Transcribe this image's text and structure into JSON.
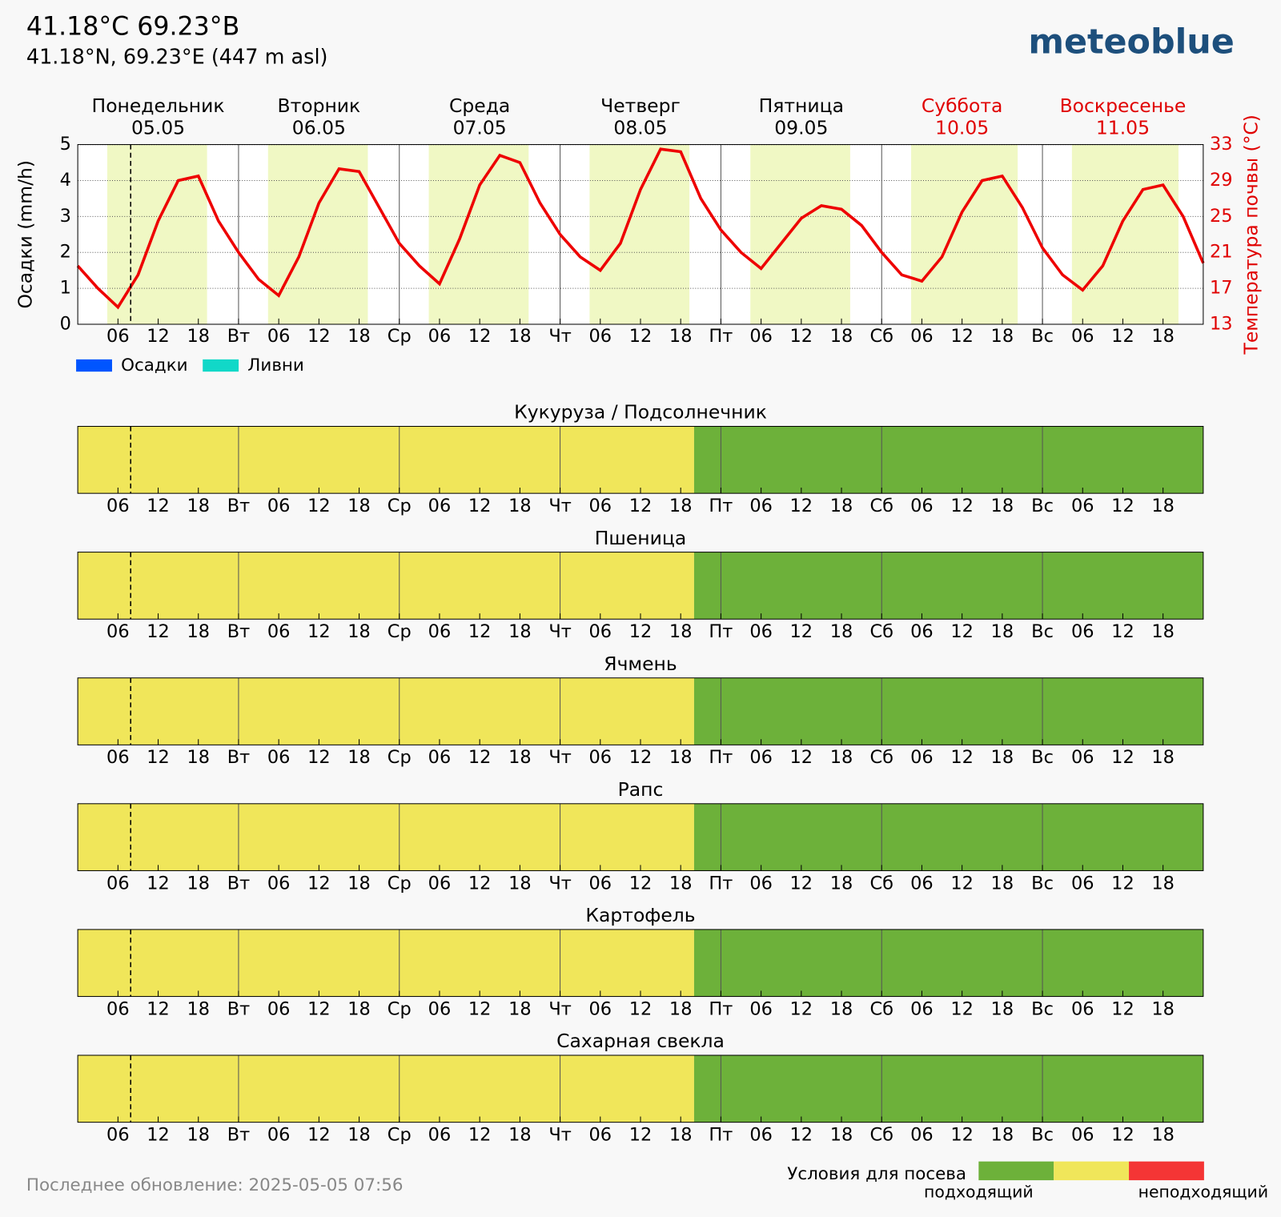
{
  "header": {
    "title": "41.18°C 69.23°B",
    "subtitle": "41.18°N, 69.23°E (447 m asl)",
    "logo": "meteoblue"
  },
  "footer": "Последнее обновление: 2025-05-05 07:56",
  "days": [
    {
      "name": "Понедельник",
      "date": "05.05",
      "color": "#000000"
    },
    {
      "name": "Вторник",
      "date": "06.05",
      "color": "#000000"
    },
    {
      "name": "Среда",
      "date": "07.05",
      "color": "#000000"
    },
    {
      "name": "Четверг",
      "date": "08.05",
      "color": "#000000"
    },
    {
      "name": "Пятница",
      "date": "09.05",
      "color": "#000000"
    },
    {
      "name": "Суббота",
      "date": "10.05",
      "color": "#e00000"
    },
    {
      "name": "Воскресенье",
      "date": "11.05",
      "color": "#e00000"
    }
  ],
  "sowing_legend": {
    "title": "Условия для посева",
    "colors": [
      "#6db13a",
      "#f0e65a",
      "#f43535"
    ],
    "labels": [
      "подходящий",
      "неподходящий"
    ]
  },
  "chart_data": [
    {
      "type": "line",
      "ylabel": "Осадки (mm/h)",
      "y2label": "Температура почвы (°C)",
      "xlim": [
        0,
        168
      ],
      "ylim": [
        0,
        5
      ],
      "yticks": [
        0,
        1,
        2,
        3,
        4,
        5
      ],
      "y2lim": [
        13,
        33
      ],
      "y2ticks": [
        13,
        17,
        21,
        25,
        29,
        33
      ],
      "grid": true,
      "now": 7.9,
      "daylight_color": "#f0f8c4",
      "daylight": [
        [
          4.4,
          19.3
        ],
        [
          28.4,
          43.3
        ],
        [
          52.4,
          67.3
        ],
        [
          76.4,
          91.3
        ],
        [
          100.4,
          115.3
        ],
        [
          124.4,
          140.3
        ],
        [
          148.4,
          164.3
        ]
      ],
      "xticks": [
        {
          "value": 6,
          "label": "06"
        },
        {
          "value": 12,
          "label": "12"
        },
        {
          "value": 18,
          "label": "18"
        },
        {
          "value": 24,
          "label": "Вт"
        },
        {
          "value": 30,
          "label": "06"
        },
        {
          "value": 36,
          "label": "12"
        },
        {
          "value": 42,
          "label": "18"
        },
        {
          "value": 48,
          "label": "Ср"
        },
        {
          "value": 54,
          "label": "06"
        },
        {
          "value": 60,
          "label": "12"
        },
        {
          "value": 66,
          "label": "18"
        },
        {
          "value": 72,
          "label": "Чт"
        },
        {
          "value": 78,
          "label": "06"
        },
        {
          "value": 84,
          "label": "12"
        },
        {
          "value": 90,
          "label": "18"
        },
        {
          "value": 96,
          "label": "Пт"
        },
        {
          "value": 102,
          "label": "06"
        },
        {
          "value": 108,
          "label": "12"
        },
        {
          "value": 114,
          "label": "18"
        },
        {
          "value": 120,
          "label": "Сб"
        },
        {
          "value": 126,
          "label": "06"
        },
        {
          "value": 132,
          "label": "12"
        },
        {
          "value": 138,
          "label": "18"
        },
        {
          "value": 144,
          "label": "Вс"
        },
        {
          "value": 150,
          "label": "06"
        },
        {
          "value": 156,
          "label": "12"
        },
        {
          "value": 162,
          "label": "18"
        }
      ],
      "x": [
        0,
        3,
        6,
        9,
        12,
        15,
        18,
        21,
        24,
        27,
        30,
        33,
        36,
        39,
        42,
        45,
        48,
        51,
        54,
        57,
        60,
        63,
        66,
        69,
        72,
        75,
        78,
        81,
        84,
        87,
        90,
        93,
        96,
        99,
        102,
        105,
        108,
        111,
        114,
        117,
        120,
        123,
        126,
        129,
        132,
        135,
        138,
        141,
        144,
        147,
        150,
        153,
        156,
        159,
        162,
        165,
        168
      ],
      "series": [
        {
          "name": "Осадки",
          "color": "#0055ff",
          "values": [
            0,
            0,
            0,
            0,
            0,
            0,
            0,
            0,
            0,
            0,
            0,
            0,
            0,
            0,
            0,
            0,
            0,
            0,
            0,
            0,
            0,
            0,
            0,
            0,
            0,
            0,
            0,
            0,
            0,
            0,
            0,
            0,
            0,
            0,
            0,
            0,
            0,
            0,
            0,
            0,
            0,
            0,
            0,
            0,
            0,
            0,
            0,
            0,
            0,
            0,
            0,
            0,
            0,
            0,
            0,
            0,
            0
          ]
        },
        {
          "name": "Ливни",
          "color": "#11d8c8",
          "values": [
            0,
            0,
            0,
            0,
            0,
            0,
            0,
            0,
            0,
            0,
            0,
            0,
            0,
            0,
            0,
            0,
            0,
            0,
            0,
            0,
            0,
            0,
            0,
            0,
            0,
            0,
            0,
            0,
            0,
            0,
            0,
            0,
            0,
            0,
            0,
            0,
            0,
            0,
            0,
            0,
            0,
            0,
            0,
            0,
            0,
            0,
            0,
            0,
            0,
            0,
            0,
            0,
            0,
            0,
            0,
            0,
            0
          ]
        },
        {
          "name": "Температура почвы",
          "color": "#ee0000",
          "axis": "y2",
          "values": [
            19.5,
            17,
            14.9,
            18.5,
            24.5,
            29,
            29.5,
            24.5,
            21,
            18,
            16.2,
            20.5,
            26.5,
            30.3,
            30,
            26,
            22,
            19.5,
            17.5,
            22.5,
            28.5,
            31.8,
            31,
            26.5,
            23,
            20.5,
            19,
            22,
            28,
            32.5,
            32.2,
            27,
            23.5,
            21,
            19.2,
            22,
            24.8,
            26.2,
            25.8,
            24,
            21,
            18.5,
            17.8,
            20.5,
            25.5,
            29,
            29.5,
            26,
            21.5,
            18.5,
            16.8,
            19.5,
            24.5,
            28,
            28.5,
            25,
            19.8
          ]
        }
      ]
    },
    {
      "type": "timeline",
      "title": "Кукуруза / Подсолнечник",
      "segments": [
        {
          "start": 0,
          "end": 92,
          "color": "#f0e65a"
        },
        {
          "start": 92,
          "end": 168,
          "color": "#6db13a"
        }
      ]
    },
    {
      "type": "timeline",
      "title": "Пшеница",
      "segments": [
        {
          "start": 0,
          "end": 92,
          "color": "#f0e65a"
        },
        {
          "start": 92,
          "end": 168,
          "color": "#6db13a"
        }
      ]
    },
    {
      "type": "timeline",
      "title": "Ячмень",
      "segments": [
        {
          "start": 0,
          "end": 92,
          "color": "#f0e65a"
        },
        {
          "start": 92,
          "end": 168,
          "color": "#6db13a"
        }
      ]
    },
    {
      "type": "timeline",
      "title": "Рапс",
      "segments": [
        {
          "start": 0,
          "end": 92,
          "color": "#f0e65a"
        },
        {
          "start": 92,
          "end": 168,
          "color": "#6db13a"
        }
      ]
    },
    {
      "type": "timeline",
      "title": "Картофель",
      "segments": [
        {
          "start": 0,
          "end": 92,
          "color": "#f0e65a"
        },
        {
          "start": 92,
          "end": 168,
          "color": "#6db13a"
        }
      ]
    },
    {
      "type": "timeline",
      "title": "Сахарная свекла",
      "segments": [
        {
          "start": 0,
          "end": 92,
          "color": "#f0e65a"
        },
        {
          "start": 92,
          "end": 168,
          "color": "#6db13a"
        }
      ]
    }
  ]
}
